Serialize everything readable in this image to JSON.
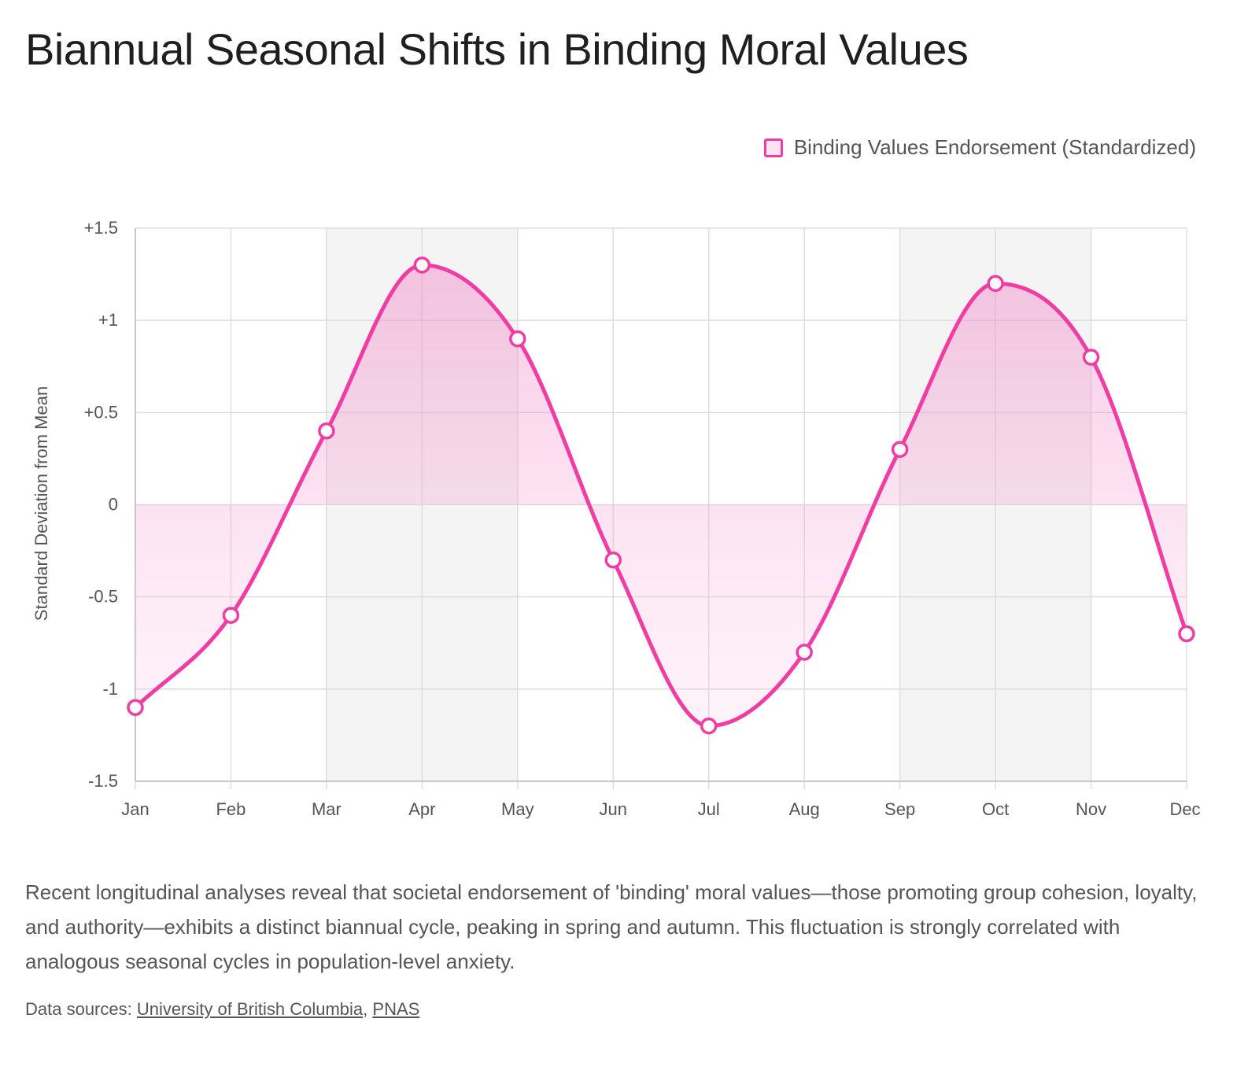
{
  "title": "Biannual Seasonal Shifts in Binding Moral Values",
  "legend": {
    "label": "Binding Values Endorsement (Standardized)"
  },
  "description": "Recent longitudinal analyses reveal that societal endorsement of 'binding' moral values—those promoting group cohesion, loyalty, and authority—exhibits a distinct biannual cycle, peaking in spring and autumn. This fluctuation is strongly correlated with analogous seasonal cycles in population-level anxiety.",
  "sources": {
    "prefix": "Data sources: ",
    "links": [
      "University of British Columbia",
      "PNAS"
    ],
    "separator": ", "
  },
  "chart_data": {
    "type": "line",
    "title": "Biannual Seasonal Shifts in Binding Moral Values",
    "xlabel": "",
    "ylabel": "Standard Deviation from Mean",
    "categories": [
      "Jan",
      "Feb",
      "Mar",
      "Apr",
      "May",
      "Jun",
      "Jul",
      "Aug",
      "Sep",
      "Oct",
      "Nov",
      "Dec"
    ],
    "series": [
      {
        "name": "Binding Values Endorsement (Standardized)",
        "values": [
          -1.1,
          -0.6,
          0.4,
          1.3,
          0.9,
          -0.3,
          -1.2,
          -0.8,
          0.3,
          1.2,
          0.8,
          -0.7
        ]
      }
    ],
    "ylim": [
      -1.5,
      1.5
    ],
    "yticks": [
      1.5,
      1,
      0.5,
      0,
      -0.5,
      -1,
      -1.5
    ],
    "ytick_labels": [
      "+1.5",
      "+1",
      "+0.5",
      "0",
      "-0.5",
      "-1",
      "-1.5"
    ],
    "shaded_bands": [
      [
        "Mar",
        "May"
      ],
      [
        "Sep",
        "Nov"
      ]
    ],
    "grid": true,
    "legend_position": "top-right",
    "colors": {
      "line": "#f03da4",
      "fill": "#f9c6e2",
      "band": "#f4f4f4",
      "grid": "#dddddd"
    }
  }
}
